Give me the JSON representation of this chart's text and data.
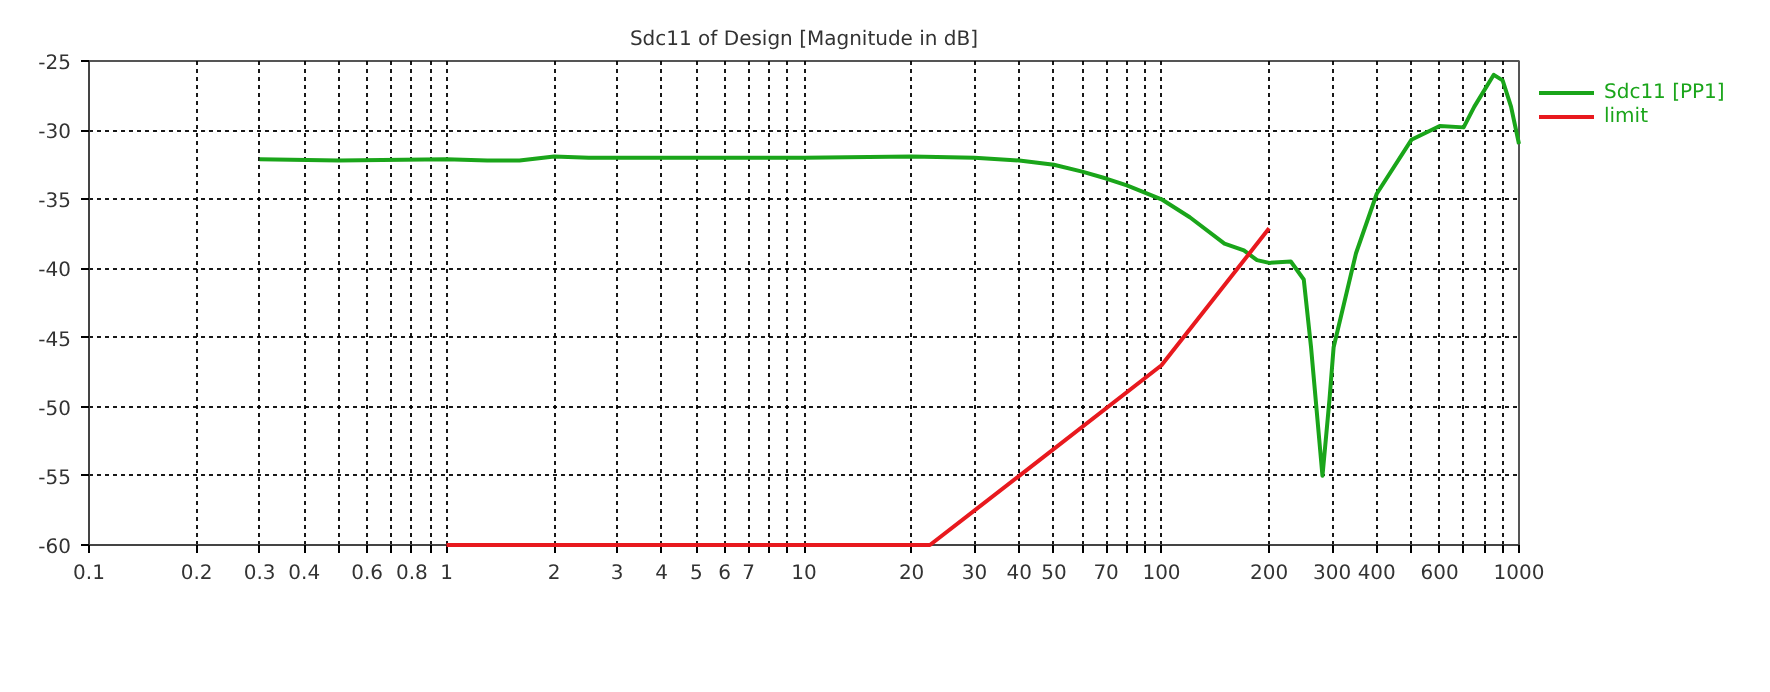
{
  "chart_data": {
    "type": "line",
    "title": "Sdc11 of Design [Magnitude in dB]",
    "log": "x",
    "grid": true,
    "legend": "top right",
    "line_style": "solid",
    "marker": "none",
    "xlim": [
      0.1,
      1000
    ],
    "ylim": [
      -60,
      -25
    ],
    "xticks": [
      0.1,
      0.2,
      0.3,
      0.4,
      {
        "value": 0.5,
        "label": null
      },
      0.6,
      {
        "value": 0.7,
        "label": null
      },
      0.8,
      {
        "value": 0.9,
        "label": null
      },
      1,
      2,
      3,
      4,
      5,
      6,
      7,
      {
        "value": 8,
        "label": null
      },
      {
        "value": 9,
        "label": null
      },
      10,
      20,
      30,
      40,
      50,
      {
        "value": 60,
        "label": null
      },
      70,
      {
        "value": 80,
        "label": null
      },
      {
        "value": 90,
        "label": null
      },
      100,
      200,
      300,
      400,
      {
        "value": 500,
        "label": null
      },
      600,
      {
        "value": 700,
        "label": null
      },
      {
        "value": 800,
        "label": null
      },
      {
        "value": 900,
        "label": null
      },
      1000
    ],
    "yticks": [
      -60,
      -55,
      -50,
      -45,
      -40,
      -35,
      -30,
      -25
    ],
    "series": [
      {
        "name": "Sdc11 [PP1]",
        "color": "#1aa51a",
        "x": [
          0.3,
          0.5,
          1,
          1.3,
          1.6,
          2,
          2.5,
          10,
          20,
          30,
          40,
          50,
          60,
          70,
          80,
          100,
          120,
          150,
          170,
          185,
          200,
          230,
          250,
          262,
          282,
          295,
          303,
          350,
          400,
          500,
          600,
          700,
          750,
          850,
          900,
          950,
          1000
        ],
        "values": [
          -32.1,
          -32.2,
          -32.1,
          -32.2,
          -32.2,
          -31.9,
          -32.0,
          -32.0,
          -31.9,
          -32.0,
          -32.2,
          -32.5,
          -33.0,
          -33.5,
          -34.0,
          -35.0,
          -36.3,
          -38.2,
          -38.7,
          -39.4,
          -39.6,
          -39.5,
          -40.8,
          -45.7,
          -55.0,
          -49.5,
          -45.7,
          -38.9,
          -34.6,
          -30.7,
          -29.7,
          -29.8,
          -28.3,
          -26.0,
          -26.4,
          -28.3,
          -31.0
        ]
      },
      {
        "name": "limit",
        "color": "#e8191e",
        "x": [
          1,
          22.5,
          40,
          100,
          200
        ],
        "values": [
          -60,
          -60,
          -55,
          -47.0,
          -37.1
        ]
      }
    ]
  }
}
